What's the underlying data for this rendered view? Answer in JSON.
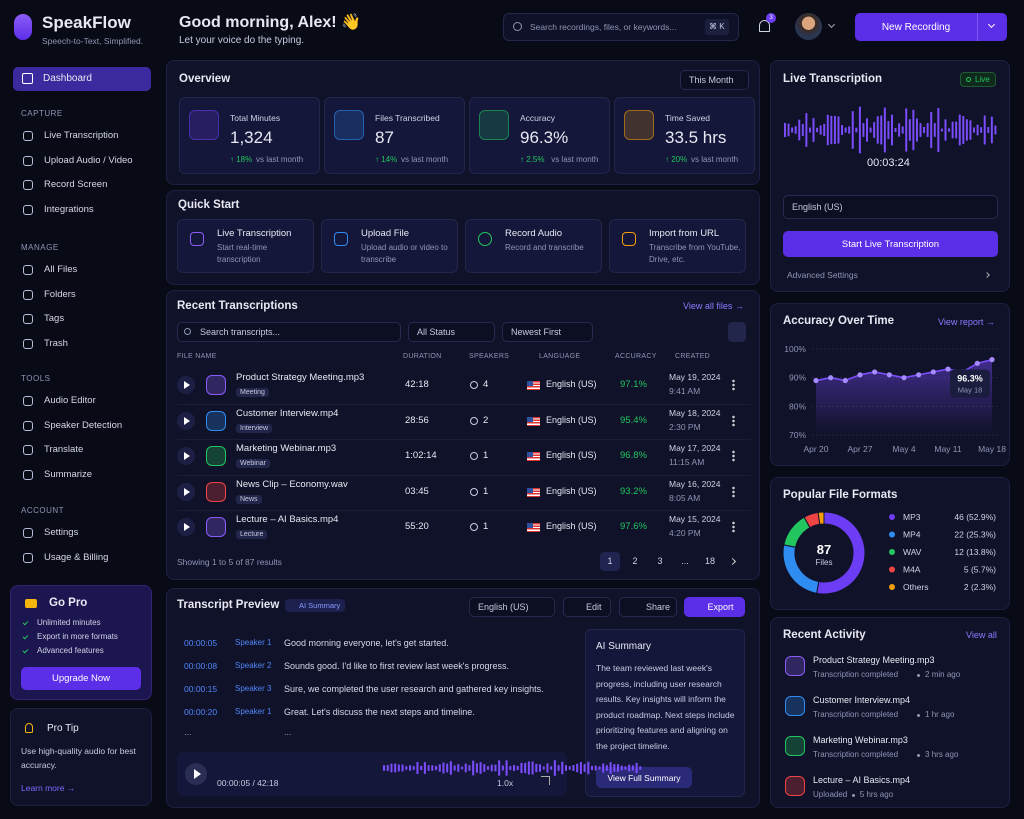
{
  "brand": {
    "name": "SpeakFlow",
    "tagline": "Speech-to-Text, Simplified."
  },
  "header": {
    "greeting": "Good morning, Alex! 👋",
    "subtitle": "Let your voice do the typing.",
    "search_placeholder": "Search recordings, files, or keywords...",
    "shortcut": "⌘ K",
    "notifications": "3",
    "new_recording": "New Recording"
  },
  "nav": {
    "dashboard": "Dashboard",
    "sections": [
      {
        "title": "CAPTURE",
        "items": [
          "Live Transcription",
          "Upload Audio / Video",
          "Record Screen",
          "Integrations"
        ]
      },
      {
        "title": "MANAGE",
        "items": [
          "All Files",
          "Folders",
          "Tags",
          "Trash"
        ]
      },
      {
        "title": "TOOLS",
        "items": [
          "Audio Editor",
          "Speaker Detection",
          "Translate",
          "Summarize"
        ]
      },
      {
        "title": "ACCOUNT",
        "items": [
          "Settings",
          "Usage & Billing"
        ]
      }
    ]
  },
  "go_pro": {
    "title": "Go Pro",
    "features": [
      "Unlimited minutes",
      "Export in more formats",
      "Advanced features"
    ],
    "button": "Upgrade Now"
  },
  "pro_tip": {
    "title": "Pro Tip",
    "text": "Use high-quality audio for best accuracy.",
    "link": "Learn more →"
  },
  "overview": {
    "title": "Overview",
    "period": "This Month",
    "stats": [
      {
        "label": "Total Minutes",
        "value": "1,324",
        "change": "↑ 18%",
        "compare": "vs last month"
      },
      {
        "label": "Files Transcribed",
        "value": "87",
        "change": "↑ 14%",
        "compare": "vs last month"
      },
      {
        "label": "Accuracy",
        "value": "96.3%",
        "change": "↑ 2.5%",
        "compare": "vs last month"
      },
      {
        "label": "Time Saved",
        "value": "33.5 hrs",
        "change": "↑ 20%",
        "compare": "vs last month"
      }
    ]
  },
  "quick_start": {
    "title": "Quick Start",
    "items": [
      {
        "title": "Live Transcription",
        "desc": "Start real-time transcription"
      },
      {
        "title": "Upload File",
        "desc": "Upload audio or video to transcribe"
      },
      {
        "title": "Record Audio",
        "desc": "Record and transcribe"
      },
      {
        "title": "Import from URL",
        "desc": "Transcribe from YouTube, Drive, etc."
      }
    ]
  },
  "recent": {
    "title": "Recent Transcriptions",
    "view_all": "View all files →",
    "search": "Search transcripts...",
    "status": "All Status",
    "sort": "Newest First",
    "columns": [
      "FILE NAME",
      "DURATION",
      "SPEAKERS",
      "LANGUAGE",
      "ACCURACY",
      "CREATED"
    ],
    "rows": [
      {
        "name": "Product Strategy Meeting.mp3",
        "tag": "Meeting",
        "duration": "42:18",
        "speakers": "4",
        "language": "English (US)",
        "accuracy": "97.1%",
        "date": "May 19, 2024",
        "time": "9:41 AM"
      },
      {
        "name": "Customer Interview.mp4",
        "tag": "Interview",
        "duration": "28:56",
        "speakers": "2",
        "language": "English (US)",
        "accuracy": "95.4%",
        "date": "May 18, 2024",
        "time": "2:30 PM"
      },
      {
        "name": "Marketing Webinar.mp3",
        "tag": "Webinar",
        "duration": "1:02:14",
        "speakers": "1",
        "language": "English (US)",
        "accuracy": "96.8%",
        "date": "May 17, 2024",
        "time": "11:15 AM"
      },
      {
        "name": "News Clip – Economy.wav",
        "tag": "News",
        "duration": "03:45",
        "speakers": "1",
        "language": "English (US)",
        "accuracy": "93.2%",
        "date": "May 16, 2024",
        "time": "8:05 AM"
      },
      {
        "name": "Lecture – AI Basics.mp4",
        "tag": "Lecture",
        "duration": "55:20",
        "speakers": "1",
        "language": "English (US)",
        "accuracy": "97.6%",
        "date": "May 15, 2024",
        "time": "4:20 PM"
      }
    ],
    "showing": "Showing 1 to 5 of 87 results",
    "pages": [
      "1",
      "2",
      "3",
      "...",
      "18"
    ]
  },
  "preview": {
    "title": "Transcript Preview",
    "badge": "AI Summary",
    "language": "English (US)",
    "edit": "Edit",
    "share": "Share",
    "export": "Export",
    "lines": [
      {
        "time": "00:00:05",
        "speaker": "Speaker 1",
        "text": "Good morning everyone, let's get started."
      },
      {
        "time": "00:00:08",
        "speaker": "Speaker 2",
        "text": "Sounds good. I'd like to first review last week's progress."
      },
      {
        "time": "00:00:15",
        "speaker": "Speaker 3",
        "text": "Sure, we completed the user research and gathered key insights."
      },
      {
        "time": "00:00:20",
        "speaker": "Speaker 1",
        "text": "Great. Let's discuss the next steps and timeline."
      }
    ],
    "ellipsis": "...",
    "player_time": "00:00:05 / 42:18",
    "speed": "1.0x",
    "summary_title": "AI Summary",
    "summary": "The team reviewed last week's progress, including user research results. Key insights will inform the product roadmap. Next steps include prioritizing features and aligning on the project timeline.",
    "summary_button": "View Full Summary"
  },
  "live": {
    "title": "Live Transcription",
    "status": "Live",
    "timer": "00:03:24",
    "language": "English (US)",
    "button": "Start Live Transcription",
    "advanced": "Advanced Settings"
  },
  "chart_data": [
    {
      "type": "line",
      "title": "Accuracy Over Time",
      "link": "View report →",
      "color": "#7c4dff",
      "categories": [
        "Apr 20",
        null,
        null,
        "Apr 27",
        null,
        null,
        "May 4",
        null,
        null,
        "May 11",
        null,
        null,
        "May 18"
      ],
      "values": [
        89,
        90,
        89,
        91,
        92,
        91,
        90,
        91,
        92,
        93,
        92,
        95,
        96.3
      ],
      "ylim": [
        70,
        100
      ],
      "yticks": [
        {
          "value": 70,
          "label": "70%"
        },
        {
          "value": 80,
          "label": "80%"
        },
        {
          "value": 90,
          "label": "90%"
        },
        {
          "value": 100,
          "label": "100%"
        }
      ],
      "grid": true,
      "annotation": {
        "label": "96.3%",
        "date": "May 18"
      }
    },
    {
      "type": "pie",
      "title": "Popular File Formats",
      "center_value": "87",
      "center_label": "Files",
      "categories": [
        "MP3",
        "MP4",
        "WAV",
        "M4A",
        "Others"
      ],
      "values": [
        46,
        22,
        12,
        5,
        2
      ],
      "value_labels": [
        "46 (52.9%)",
        "22 (25.3%)",
        "12 (13.8%)",
        "5 (5.7%)",
        "2 (2.3%)"
      ],
      "colors": [
        "#6d3df5",
        "#2f8cf0",
        "#22c55e",
        "#ef4444",
        "#f59e0b"
      ]
    }
  ],
  "activity": {
    "title": "Recent Activity",
    "view_all": "View all",
    "items": [
      {
        "name": "Product Strategy Meeting.mp3",
        "status": "Transcription completed",
        "time": "2 min ago"
      },
      {
        "name": "Customer Interview.mp4",
        "status": "Transcription completed",
        "time": "1 hr ago"
      },
      {
        "name": "Marketing Webinar.mp3",
        "status": "Transcription completed",
        "time": "3 hrs ago"
      },
      {
        "name": "Lecture – AI Basics.mp4",
        "status": "Uploaded",
        "time": "5 hrs ago"
      }
    ]
  }
}
